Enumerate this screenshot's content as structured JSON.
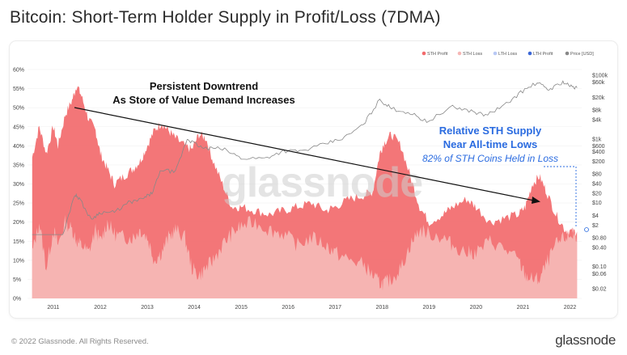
{
  "header": {
    "title": "Bitcoin: Short-Term Holder Supply in Profit/Loss (7DMA)"
  },
  "footer": {
    "copyright": "© 2022 Glassnode. All Rights Reserved.",
    "logo": "glassnode"
  },
  "colors": {
    "sth_profit": "#f26a6c",
    "sth_loss": "#f6b7b5",
    "lth_loss": "#b9c9f5",
    "lth_profit": "#3a66d6",
    "price": "#888888",
    "annotation_blue": "#2a6be0"
  },
  "chart_data": {
    "type": "area",
    "title": "Bitcoin: Short-Term Holder Supply in Profit/Loss (7DMA)",
    "watermark": "glassnode",
    "legend": {
      "placement": "top-right",
      "entries": [
        {
          "name": "STH Profit",
          "color": "#f26a6c"
        },
        {
          "name": "STH Loss",
          "color": "#f6b7b5"
        },
        {
          "name": "LTH Loss",
          "color": "#b9c9f5"
        },
        {
          "name": "LTH Profit",
          "color": "#3a66d6"
        },
        {
          "name": "Price [USD]",
          "color": "#888888"
        }
      ]
    },
    "x_ticks": [
      "2011",
      "2012",
      "2013",
      "2014",
      "2015",
      "2016",
      "2017",
      "2018",
      "2019",
      "2020",
      "2021",
      "2022"
    ],
    "y_left_ticks": [
      "0%",
      "5%",
      "10%",
      "15%",
      "20%",
      "25%",
      "30%",
      "35%",
      "40%",
      "45%",
      "50%",
      "55%",
      "60%"
    ],
    "y_left_range": [
      0,
      60
    ],
    "y_right_ticks": [
      "$0.02",
      "$0.06",
      "$0.10",
      "$0.40",
      "$0.80",
      "$2",
      "$4",
      "$10",
      "$20",
      "$40",
      "$80",
      "$200",
      "$400",
      "$600",
      "$1k",
      "$4k",
      "$8k",
      "$20k",
      "$60k",
      "$100k"
    ],
    "y_right_scale": "log",
    "series": [
      {
        "name": "STH Profit",
        "x": [
          2010.55,
          2010.7,
          2010.85,
          2011.0,
          2011.1,
          2011.25,
          2011.4,
          2011.5,
          2011.6,
          2011.75,
          2011.9,
          2012.0,
          2012.15,
          2012.3,
          2012.5,
          2012.7,
          2012.85,
          2013.0,
          2013.15,
          2013.3,
          2013.45,
          2013.6,
          2013.8,
          2013.95,
          2014.1,
          2014.25,
          2014.4,
          2014.6,
          2014.8,
          2015.0,
          2015.3,
          2015.6,
          2015.9,
          2016.2,
          2016.5,
          2016.8,
          2017.0,
          2017.3,
          2017.6,
          2017.8,
          2017.95,
          2018.05,
          2018.2,
          2018.4,
          2018.6,
          2018.8,
          2019.0,
          2019.3,
          2019.5,
          2019.8,
          2020.0,
          2020.3,
          2020.6,
          2020.9,
          2021.05,
          2021.2,
          2021.35,
          2021.5,
          2021.7,
          2021.9,
          2022.05,
          2022.15
        ],
        "values": [
          37,
          45,
          38,
          45,
          40,
          48,
          52,
          56,
          53,
          47,
          44,
          38,
          34,
          30,
          32,
          34,
          36,
          40,
          44,
          46,
          44,
          42,
          40,
          39,
          43,
          42,
          36,
          30,
          24,
          24,
          23,
          22,
          23,
          24,
          25,
          23,
          24,
          26,
          27,
          28,
          38,
          41,
          43,
          40,
          32,
          24,
          20,
          22,
          24,
          26,
          24,
          20,
          21,
          22,
          24,
          30,
          32,
          28,
          22,
          18,
          17.5,
          17.5
        ]
      },
      {
        "name": "STH Loss",
        "x": [
          2010.55,
          2010.7,
          2010.85,
          2011.0,
          2011.1,
          2011.25,
          2011.4,
          2011.5,
          2011.6,
          2011.75,
          2011.9,
          2012.0,
          2012.15,
          2012.3,
          2012.5,
          2012.7,
          2012.85,
          2013.0,
          2013.15,
          2013.3,
          2013.45,
          2013.6,
          2013.8,
          2013.95,
          2014.1,
          2014.25,
          2014.4,
          2014.6,
          2014.8,
          2015.0,
          2015.3,
          2015.6,
          2015.9,
          2016.2,
          2016.5,
          2016.8,
          2017.0,
          2017.3,
          2017.6,
          2017.8,
          2017.95,
          2018.05,
          2018.2,
          2018.4,
          2018.6,
          2018.8,
          2019.0,
          2019.3,
          2019.5,
          2019.8,
          2020.0,
          2020.3,
          2020.6,
          2020.9,
          2021.05,
          2021.2,
          2021.35,
          2021.5,
          2021.7,
          2021.9,
          2022.05,
          2022.15
        ],
        "values": [
          12,
          20,
          8,
          18,
          14,
          20,
          18,
          15,
          14,
          12,
          18,
          15,
          20,
          17,
          16,
          16,
          18,
          16,
          10,
          12,
          16,
          18,
          16,
          8,
          6,
          8,
          10,
          14,
          17,
          19,
          20,
          18,
          17,
          14,
          16,
          14,
          12,
          10,
          9,
          6,
          4,
          4,
          5,
          8,
          14,
          18,
          17,
          16,
          14,
          12,
          12,
          15,
          13,
          10,
          6,
          5,
          5,
          9,
          14,
          16,
          16.5,
          16.5
        ]
      },
      {
        "name": "Price [USD]",
        "x": [
          2010.55,
          2010.8,
          2011.0,
          2011.2,
          2011.45,
          2011.55,
          2011.8,
          2012.0,
          2012.3,
          2012.6,
          2012.9,
          2013.1,
          2013.3,
          2013.6,
          2013.85,
          2013.95,
          2014.2,
          2014.6,
          2015.0,
          2015.5,
          2015.9,
          2016.3,
          2016.8,
          2017.2,
          2017.6,
          2017.95,
          2018.2,
          2018.6,
          2018.95,
          2019.5,
          2019.9,
          2020.2,
          2020.6,
          2020.95,
          2021.3,
          2021.55,
          2021.85,
          2022.05,
          2022.15
        ],
        "values": [
          0.06,
          0.1,
          0.3,
          0.9,
          18,
          14,
          3,
          5,
          5,
          10,
          13,
          20,
          110,
          90,
          1000,
          800,
          500,
          500,
          250,
          250,
          420,
          420,
          700,
          1100,
          2800,
          17000,
          9000,
          6500,
          3500,
          10000,
          7500,
          5500,
          11000,
          29000,
          58000,
          35000,
          61000,
          42000,
          40000
        ]
      }
    ],
    "annotations": [
      {
        "text": "Persistent Downtrend"
      },
      {
        "text": "As Store of Value Demand Increases"
      },
      {
        "text": "Relative STH Supply"
      },
      {
        "text": "Near All-time Lows"
      },
      {
        "text": "82% of STH Coins Held in Loss"
      }
    ]
  }
}
